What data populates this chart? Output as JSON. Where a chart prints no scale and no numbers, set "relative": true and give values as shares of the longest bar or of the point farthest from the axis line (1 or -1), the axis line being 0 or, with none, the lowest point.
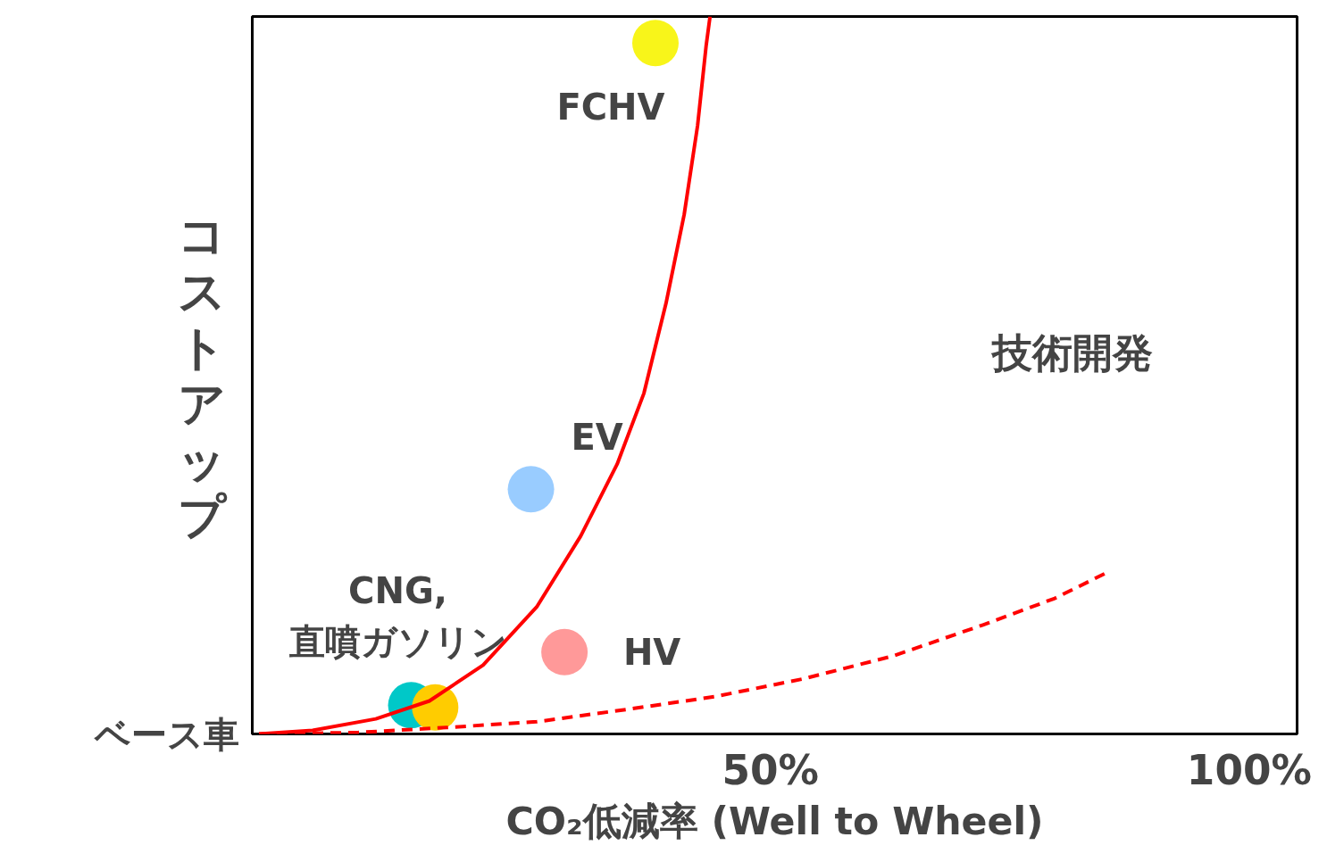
{
  "chart_data": {
    "type": "line",
    "relative": true,
    "xlabel": "CO₂低減率 (Well to Wheel)",
    "ylabel": "コストアップ",
    "xlim": [
      -4.1,
      105
    ],
    "xticks": [
      {
        "value": 50,
        "label": "50%"
      },
      {
        "value": 100,
        "label": "100%"
      }
    ],
    "tick_labels": "x",
    "grid": false,
    "series": [
      {
        "color": "#ff0000",
        "line_style": "solid",
        "x": [
          -3.4,
          2.2,
          8.8,
          14.4,
          20.0,
          25.6,
          30.2,
          34.0,
          36.8,
          39.1,
          41.0,
          42.4,
          43.3,
          43.7
        ],
        "values": [
          0,
          0.005,
          0.021,
          0.046,
          0.096,
          0.177,
          0.276,
          0.376,
          0.475,
          0.6,
          0.724,
          0.848,
          0.96,
          1
        ]
      },
      {
        "type": "line",
        "color": "#ff0000",
        "line_style": "dashed",
        "x": [
          -3.4,
          6.9,
          16.2,
          25.6,
          34.9,
          44.2,
          53.5,
          62.9,
          72.2,
          79.7,
          85.3
        ],
        "values": [
          0,
          0.002,
          0.009,
          0.017,
          0.034,
          0.052,
          0.077,
          0.109,
          0.152,
          0.189,
          0.226
        ]
      },
      {
        "type": "scatter",
        "marker": "circle",
        "x": [
          38.0,
          25.0,
          28.5,
          12.5,
          15.0
        ],
        "values": [
          0.963,
          0.341,
          0.114,
          0.04,
          0.037
        ],
        "colors": [
          "#f8f51a",
          "#99ccff",
          "#ff9999",
          "#00c8c8",
          "#ffcc00"
        ]
      }
    ],
    "annotations": [
      {
        "text": "FCHV",
        "x": 38.0,
        "y": 0.963
      },
      {
        "text": "EV",
        "x": 25.0,
        "y": 0.341
      },
      {
        "text": "CNG,\n直噴ガソリン",
        "x": 12.5,
        "y": 0.04
      },
      {
        "text": "HV",
        "x": 28.5,
        "y": 0.114
      },
      {
        "text": "ベース車",
        "x": -3.4,
        "y": 0
      },
      "技術開発"
    ]
  }
}
